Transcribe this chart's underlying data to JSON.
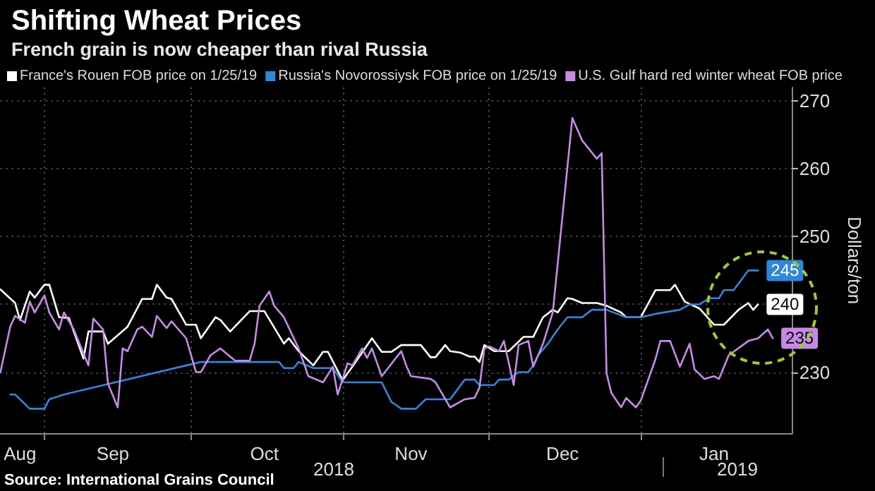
{
  "chart_data": {
    "type": "line",
    "title": "Shifting Wheat Prices",
    "subtitle": "French grain is now cheaper than rival Russia",
    "ylabel": "Dollars/ton",
    "annotations": [
      "2018",
      "2019",
      "Source: International Grains Council"
    ],
    "xlim": [
      "2018-08-23",
      "2019-02-01"
    ],
    "xticks": [
      {
        "value": "2018-08-27",
        "label": "Aug"
      },
      {
        "value": "2018-09-01",
        "label": null
      },
      {
        "value": "2018-09-15",
        "label": "Sep"
      },
      {
        "value": "2018-10-01",
        "label": null
      },
      {
        "value": "2018-10-16",
        "label": "Oct"
      },
      {
        "value": "2018-11-01",
        "label": null
      },
      {
        "value": "2018-11-15",
        "label": "Nov"
      },
      {
        "value": "2018-12-01",
        "label": null
      },
      {
        "value": "2018-12-16",
        "label": "Dec"
      },
      {
        "value": "2019-01-01",
        "label": null
      },
      {
        "value": "2019-01-16",
        "label": "Jan"
      }
    ],
    "ylim": [
      221,
      272
    ],
    "yticks": [
      230,
      {
        "value": 240,
        "label": null
      },
      250,
      260,
      270
    ],
    "grid": true,
    "legend": "top left",
    "series": [
      {
        "name": "France's Rouen FOB price on 1/25/19",
        "color": "#ffffff",
        "x": [
          "2018-08-23",
          "2018-08-26",
          "2018-08-27",
          "2018-08-29",
          "2018-08-30",
          "2018-09-01",
          "2018-09-02",
          "2018-09-04",
          "2018-09-06",
          "2018-09-09",
          "2018-09-10",
          "2018-09-13",
          "2018-09-14",
          "2018-09-18",
          "2018-09-21",
          "2018-09-23",
          "2018-09-24",
          "2018-09-26",
          "2018-09-27",
          "2018-09-30",
          "2018-10-02",
          "2018-10-03",
          "2018-10-06",
          "2018-10-07",
          "2018-10-09",
          "2018-10-13",
          "2018-10-16",
          "2018-10-20",
          "2018-10-21",
          "2018-10-23",
          "2018-10-26",
          "2018-10-28",
          "2018-10-29",
          "2018-11-01",
          "2018-11-03",
          "2018-11-07",
          "2018-11-09",
          "2018-11-11",
          "2018-11-13",
          "2018-11-15",
          "2018-11-17",
          "2018-11-19",
          "2018-11-20",
          "2018-11-22",
          "2018-11-23",
          "2018-11-25",
          "2018-11-27",
          "2018-11-28",
          "2018-11-29",
          "2018-11-30",
          "2018-12-02",
          "2018-12-05",
          "2018-12-08",
          "2018-12-10",
          "2018-12-12",
          "2018-12-14",
          "2018-12-15",
          "2018-12-17",
          "2018-12-18",
          "2018-12-20",
          "2018-12-23",
          "2018-12-25",
          "2018-12-28",
          "2018-12-29",
          "2019-01-01",
          "2019-01-04",
          "2019-01-07",
          "2019-01-08",
          "2019-01-10",
          "2019-01-13",
          "2019-01-16",
          "2019-01-18",
          "2019-01-21",
          "2019-01-23",
          "2019-01-24",
          "2019-01-25"
        ],
        "values": [
          242.2,
          240.2,
          237.7,
          241.9,
          241,
          242.9,
          242.9,
          238.1,
          238,
          232,
          236,
          236,
          234.2,
          236.7,
          240.8,
          240.8,
          242.9,
          241,
          240.8,
          237,
          237,
          235,
          238.1,
          237.7,
          236,
          239,
          239,
          234.2,
          235,
          233.1,
          231,
          233,
          233,
          228.8,
          230.8,
          235,
          233,
          233,
          234,
          234,
          234,
          232.2,
          232.2,
          234,
          233.1,
          232.9,
          232.3,
          232.3,
          231.5,
          234,
          233.1,
          233.1,
          235.2,
          235.2,
          238.1,
          239.2,
          238.8,
          240.9,
          240.8,
          240.2,
          240.2,
          239.8,
          238.8,
          238.1,
          238.1,
          242.1,
          242.1,
          242.9,
          240.4,
          239.4,
          237,
          237,
          239.2,
          240.2,
          239.2,
          240
        ],
        "value_labels": [
          null,
          null,
          null,
          null,
          null,
          null,
          null,
          null,
          null,
          null,
          null,
          null,
          null,
          null,
          null,
          null,
          null,
          null,
          null,
          null,
          null,
          null,
          null,
          null,
          null,
          null,
          null,
          null,
          null,
          null,
          null,
          null,
          null,
          null,
          null,
          null,
          null,
          null,
          null,
          null,
          null,
          null,
          null,
          null,
          null,
          null,
          null,
          null,
          null,
          null,
          null,
          null,
          null,
          null,
          null,
          null,
          null,
          null,
          null,
          null,
          null,
          null,
          null,
          null,
          null,
          null,
          null,
          null,
          null,
          null,
          null,
          null,
          null,
          null,
          null,
          "240"
        ]
      },
      {
        "name": "Russia's Novorossiysk FOB price on 1/25/19",
        "color": "#2f86dd",
        "x": [
          "2018-08-25",
          "2018-08-26",
          "2018-08-29",
          "2018-09-01",
          "2018-09-02",
          "2018-09-05",
          "2018-10-03",
          "2018-10-19",
          "2018-10-20",
          "2018-10-22",
          "2018-10-23",
          "2018-10-26",
          "2018-10-30",
          "2018-11-01",
          "2018-11-09",
          "2018-11-11",
          "2018-11-13",
          "2018-11-16",
          "2018-11-18",
          "2018-11-23",
          "2018-11-26",
          "2018-11-28",
          "2018-11-29",
          "2018-12-02",
          "2018-12-03",
          "2018-12-05",
          "2018-12-07",
          "2018-12-09",
          "2018-12-10",
          "2018-12-11",
          "2018-12-13",
          "2018-12-15",
          "2018-12-17",
          "2018-12-20",
          "2018-12-22",
          "2018-12-25",
          "2018-12-29",
          "2019-01-01",
          "2019-01-04",
          "2019-01-09",
          "2019-01-11",
          "2019-01-13",
          "2019-01-15",
          "2019-01-17",
          "2019-01-18",
          "2019-01-20",
          "2019-01-23",
          "2019-01-25"
        ],
        "values": [
          226.7,
          226.7,
          224.6,
          224.6,
          226,
          226.7,
          231.5,
          231.5,
          230.6,
          230.6,
          231.5,
          230.6,
          230.6,
          228.5,
          228.5,
          225.6,
          224.6,
          224.6,
          226,
          226,
          228.9,
          228.9,
          228.1,
          228.1,
          228.9,
          228.9,
          230,
          230,
          231,
          232.5,
          234.2,
          236.3,
          238.1,
          238.1,
          239.2,
          239.2,
          238.1,
          238.1,
          238.6,
          239.2,
          240,
          240,
          240.9,
          240.9,
          242.1,
          242.1,
          245,
          245
        ],
        "value_labels": [
          null,
          null,
          null,
          null,
          null,
          null,
          null,
          null,
          null,
          null,
          null,
          null,
          null,
          null,
          null,
          null,
          null,
          null,
          null,
          null,
          null,
          null,
          null,
          null,
          null,
          null,
          null,
          null,
          null,
          null,
          null,
          null,
          null,
          null,
          null,
          null,
          null,
          null,
          null,
          null,
          null,
          null,
          null,
          null,
          null,
          null,
          null,
          "245"
        ]
      },
      {
        "name": "U.S. Gulf hard red winter wheat FOB price",
        "color": "#c68ae6",
        "x": [
          "2018-08-23",
          "2018-08-25",
          "2018-08-26",
          "2018-08-28",
          "2018-08-29",
          "2018-08-30",
          "2018-09-01",
          "2018-09-02",
          "2018-09-04",
          "2018-09-05",
          "2018-09-07",
          "2018-09-10",
          "2018-09-11",
          "2018-09-13",
          "2018-09-14",
          "2018-09-16",
          "2018-09-17",
          "2018-09-18",
          "2018-09-20",
          "2018-09-21",
          "2018-09-23",
          "2018-09-24",
          "2018-09-26",
          "2018-09-27",
          "2018-09-30",
          "2018-10-02",
          "2018-10-03",
          "2018-10-05",
          "2018-10-07",
          "2018-10-10",
          "2018-10-13",
          "2018-10-14",
          "2018-10-15",
          "2018-10-17",
          "2018-10-18",
          "2018-10-20",
          "2018-10-23",
          "2018-10-25",
          "2018-10-28",
          "2018-10-30",
          "2018-10-31",
          "2018-11-02",
          "2018-11-03",
          "2018-11-05",
          "2018-11-06",
          "2018-11-07",
          "2018-11-09",
          "2018-11-13",
          "2018-11-14",
          "2018-11-15",
          "2018-11-19",
          "2018-11-20",
          "2018-11-23",
          "2018-11-26",
          "2018-11-28",
          "2018-11-29",
          "2018-11-30",
          "2018-12-01",
          "2018-12-03",
          "2018-12-04",
          "2018-12-06",
          "2018-12-07",
          "2018-12-09",
          "2018-12-10",
          "2018-12-12",
          "2018-12-14",
          "2018-12-18",
          "2018-12-20",
          "2018-12-23",
          "2018-12-24",
          "2018-12-25",
          "2018-12-26",
          "2018-12-28",
          "2018-12-29",
          "2018-12-31",
          "2019-01-01",
          "2019-01-04",
          "2019-01-05",
          "2019-01-07",
          "2019-01-09",
          "2019-01-11",
          "2019-01-12",
          "2019-01-14",
          "2019-01-16",
          "2019-01-17",
          "2019-01-19",
          "2019-01-23",
          "2019-01-25",
          "2019-01-27",
          "2019-01-28"
        ],
        "values": [
          230,
          236.7,
          238.3,
          237.3,
          240.4,
          238.8,
          241.3,
          238.8,
          236.3,
          238.8,
          236.3,
          231,
          237.9,
          236.3,
          228.3,
          224.8,
          233.5,
          233.1,
          236.3,
          236.7,
          235.2,
          238.3,
          236.5,
          237.5,
          235,
          230,
          230,
          232.5,
          233.5,
          231.7,
          231.7,
          234.2,
          239.8,
          241.9,
          239.8,
          238.1,
          233.5,
          229.4,
          228.5,
          230.8,
          226.7,
          231.3,
          231,
          233.5,
          232.1,
          233.5,
          229.4,
          233.1,
          231,
          229.4,
          229,
          228.5,
          224.8,
          226,
          226.2,
          227.7,
          233.5,
          233.8,
          233.1,
          234.6,
          228.1,
          234,
          234.6,
          230.8,
          234.2,
          238.8,
          267.5,
          264.2,
          261.5,
          262.3,
          229.8,
          226.9,
          224.8,
          226.2,
          224.8,
          225.8,
          231.9,
          234.6,
          234.6,
          230.8,
          234.2,
          230.4,
          229,
          229.4,
          229,
          232.5,
          234.6,
          235,
          236.3,
          235
        ],
        "value_labels": [
          null,
          null,
          null,
          null,
          null,
          null,
          null,
          null,
          null,
          null,
          null,
          null,
          null,
          null,
          null,
          null,
          null,
          null,
          null,
          null,
          null,
          null,
          null,
          null,
          null,
          null,
          null,
          null,
          null,
          null,
          null,
          null,
          null,
          null,
          null,
          null,
          null,
          null,
          null,
          null,
          null,
          null,
          null,
          null,
          null,
          null,
          null,
          null,
          null,
          null,
          null,
          null,
          null,
          null,
          null,
          null,
          null,
          null,
          null,
          null,
          null,
          null,
          null,
          null,
          null,
          null,
          null,
          null,
          null,
          null,
          null,
          null,
          null,
          null,
          null,
          null,
          null,
          null,
          null,
          null,
          null,
          null,
          null,
          null,
          null,
          null,
          null,
          null,
          null,
          "235"
        ]
      }
    ]
  }
}
